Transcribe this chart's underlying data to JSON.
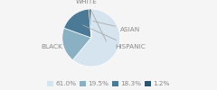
{
  "labels": [
    "WHITE",
    "BLACK",
    "HISPANIC",
    "ASIAN"
  ],
  "values": [
    61.0,
    19.5,
    18.3,
    1.2
  ],
  "colors": [
    "#d6e4f0",
    "#8ab0c4",
    "#4a7a96",
    "#2a5570"
  ],
  "legend_labels": [
    "61.0%",
    "19.5%",
    "18.3%",
    "1.2%"
  ],
  "label_fontsize": 5.2,
  "legend_fontsize": 5.2,
  "startangle": 90,
  "bg_color": "#f5f5f5",
  "text_color": "#888888",
  "line_color": "#aaaaaa"
}
